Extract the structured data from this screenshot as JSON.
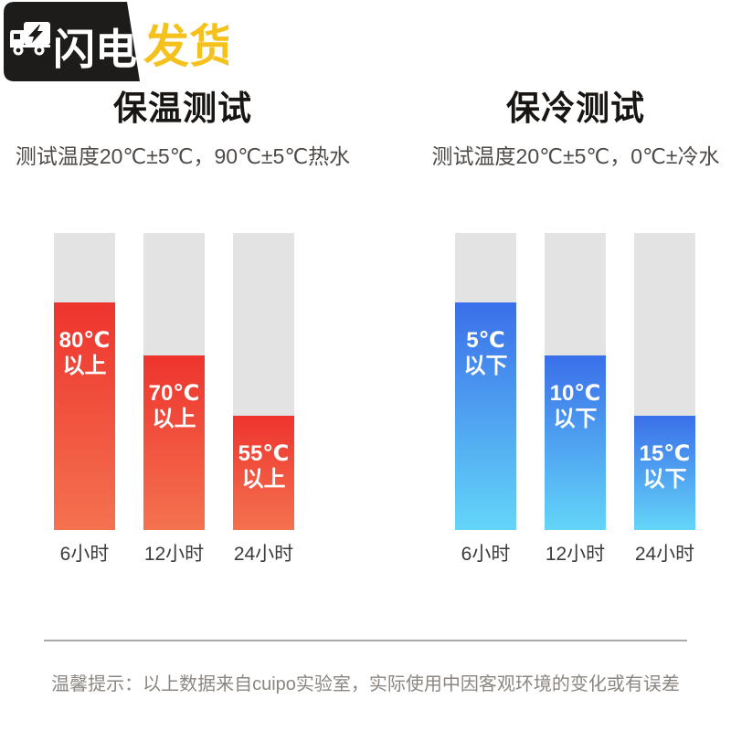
{
  "badge": {
    "brand_text_primary": "闪电",
    "brand_text_secondary": "发货",
    "colors": {
      "badge_bg": "#1e1c1a",
      "primary_text": "#ffffff",
      "secondary_text": "#f5c21d"
    }
  },
  "charts": [
    {
      "title": "保温测试",
      "subtitle": "测试温度20℃±5℃，90℃±5℃热水",
      "fill_color_top": "#ee342e",
      "fill_color_bottom": "#f4724f",
      "track_color": "#e3e3e4",
      "bars": [
        {
          "temp": "80℃",
          "qualifier": "以上",
          "time": "6小时",
          "fill_percent": 76.6
        },
        {
          "temp": "70℃",
          "qualifier": "以上",
          "time": "12小时",
          "fill_percent": 58.8
        },
        {
          "temp": "55℃",
          "qualifier": "以上",
          "time": "24小时",
          "fill_percent": 38.5
        }
      ]
    },
    {
      "title": "保冷测试",
      "subtitle": "测试温度20℃±5℃，0℃±冷水",
      "fill_color_top": "#3a6fe9",
      "fill_color_bottom": "#64d5f8",
      "track_color": "#e3e3e4",
      "bars": [
        {
          "temp": "5℃",
          "qualifier": "以下",
          "time": "6小时",
          "fill_percent": 76.6
        },
        {
          "temp": "10℃",
          "qualifier": "以下",
          "time": "12小时",
          "fill_percent": 58.8
        },
        {
          "temp": "15℃",
          "qualifier": "以下",
          "time": "24小时",
          "fill_percent": 38.5
        }
      ]
    }
  ],
  "footer": {
    "note": "温馨提示：以上数据来自cuipo实验室，实际使用中因客观环境的变化或有误差"
  },
  "chart_data": [
    {
      "type": "bar",
      "title": "保温测试",
      "subtitle": "测试温度20℃±5℃，90℃±5℃热水",
      "categories": [
        "6小时",
        "12小时",
        "24小时"
      ],
      "values": [
        80,
        70,
        55
      ],
      "value_labels": [
        "80℃以上",
        "70℃以上",
        "55℃以上"
      ],
      "bar_fill_percent_of_track": [
        76.6,
        58.8,
        38.5
      ],
      "bar_color": "red-orange gradient",
      "legend_position": "none",
      "grid": false
    },
    {
      "type": "bar",
      "title": "保冷测试",
      "subtitle": "测试温度20℃±5℃，0℃±冷水",
      "categories": [
        "6小时",
        "12小时",
        "24小时"
      ],
      "values": [
        5,
        10,
        15
      ],
      "value_labels": [
        "5℃以下",
        "10℃以下",
        "15℃以下"
      ],
      "bar_fill_percent_of_track": [
        76.6,
        58.8,
        38.5
      ],
      "bar_color": "blue-cyan gradient",
      "legend_position": "none",
      "grid": false
    }
  ]
}
